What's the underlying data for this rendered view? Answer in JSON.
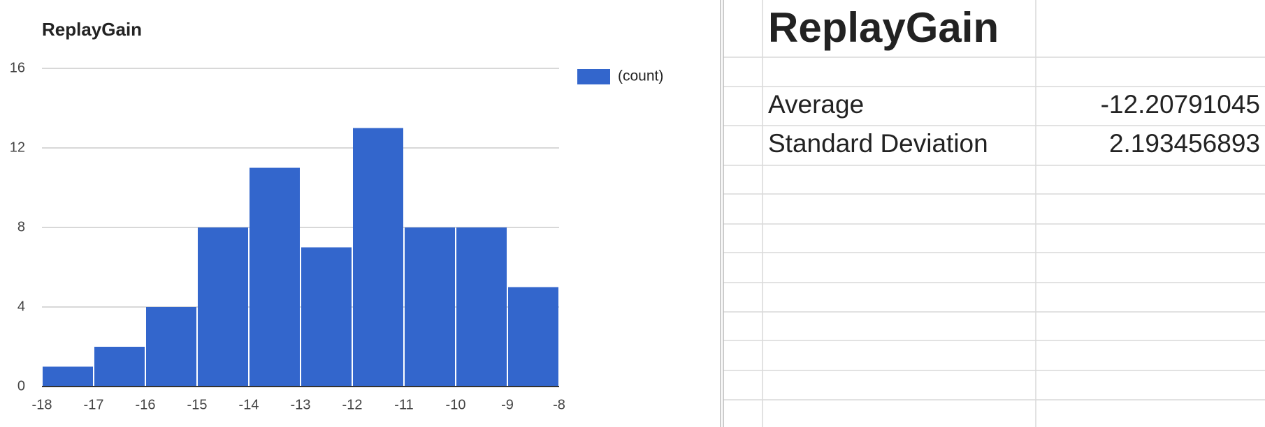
{
  "chart_data": {
    "type": "histogram",
    "title": "ReplayGain",
    "bins": [
      -18,
      -17,
      -16,
      -15,
      -14,
      -13,
      -12,
      -11,
      -10,
      -9,
      -8
    ],
    "series": [
      {
        "name": "(count)",
        "color": "#3366cc",
        "values": [
          1,
          2,
          4,
          8,
          11,
          7,
          13,
          8,
          8,
          5
        ]
      }
    ],
    "xlim": [
      -18,
      -8
    ],
    "xticks": [
      -18,
      -17,
      -16,
      -15,
      -14,
      -13,
      -12,
      -11,
      -10,
      -9,
      -8
    ],
    "ylim": [
      0,
      16
    ],
    "yticks": [
      0,
      4,
      8,
      12,
      16
    ],
    "grid": true,
    "legend": "right"
  },
  "sheet": {
    "title": "ReplayGain",
    "rows": [
      [
        "Average",
        "-12.20791045"
      ],
      [
        "Standard Deviation",
        "2.193456893"
      ]
    ]
  }
}
